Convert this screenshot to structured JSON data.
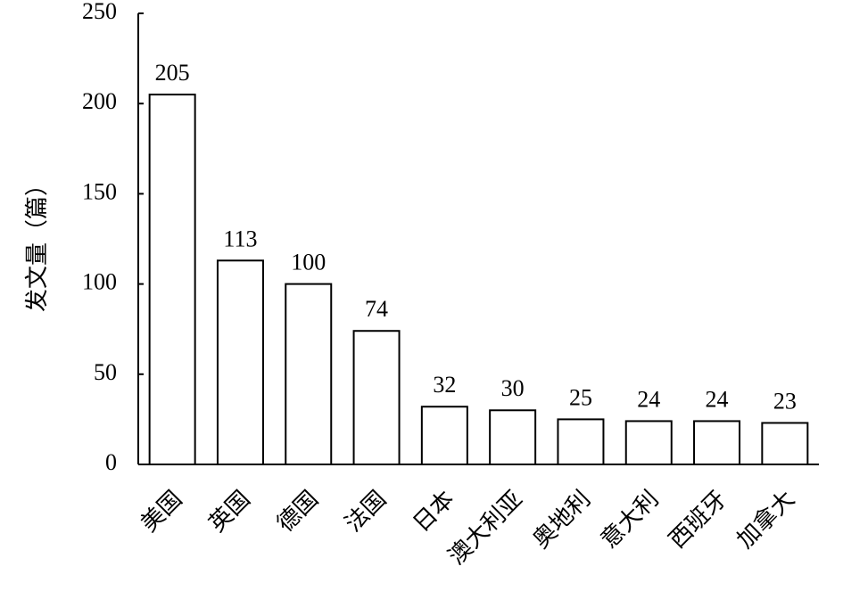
{
  "chart_data": {
    "type": "bar",
    "y_axis_label": "发文量（篇）",
    "categories": [
      "美国",
      "英国",
      "德国",
      "法国",
      "日本",
      "澳大利亚",
      "奥地利",
      "意大利",
      "西班牙",
      "加拿大"
    ],
    "values": [
      205,
      113,
      100,
      74,
      32,
      30,
      25,
      24,
      24,
      23
    ],
    "color": "#ffffff",
    "ylim": [
      0,
      250
    ],
    "yticks": [
      0,
      50,
      100,
      150,
      200,
      250
    ],
    "grid": false
  }
}
